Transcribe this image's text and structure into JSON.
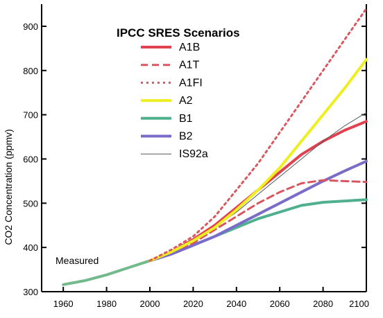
{
  "chart_data": {
    "type": "line",
    "title": "IPCC SRES Scenarios",
    "xlabel": "",
    "ylabel": "CO2 Concentration (ppmv)",
    "xlim": [
      1950,
      2100
    ],
    "ylim": [
      300,
      950
    ],
    "x_ticks": [
      "1960",
      "1980",
      "2000",
      "2020",
      "2040",
      "2060",
      "2080",
      "2100"
    ],
    "y_ticks": [
      "300",
      "400",
      "500",
      "600",
      "700",
      "800",
      "900"
    ],
    "grid": false,
    "legend_position": "top-left",
    "annotation": "Measured",
    "measured": {
      "color": "#72b98c",
      "x": [
        1960,
        1970,
        1980,
        1990,
        2000
      ],
      "y": [
        316,
        325,
        338,
        354,
        370
      ]
    },
    "series": [
      {
        "name": "A1B",
        "color": "#e1424f",
        "style": "solid",
        "width": 4,
        "x": [
          2000,
          2010,
          2020,
          2030,
          2040,
          2050,
          2060,
          2070,
          2080,
          2090,
          2100
        ],
        "y": [
          370,
          390,
          418,
          450,
          490,
          530,
          570,
          610,
          640,
          665,
          685
        ]
      },
      {
        "name": "A1T",
        "color": "#d95560",
        "style": "dashed",
        "width": 3,
        "x": [
          2000,
          2010,
          2020,
          2030,
          2040,
          2050,
          2060,
          2070,
          2080,
          2090,
          2100
        ],
        "y": [
          370,
          390,
          410,
          440,
          470,
          500,
          525,
          545,
          552,
          550,
          548
        ]
      },
      {
        "name": "A1FI",
        "color": "#d9585f",
        "style": "dotted",
        "width": 3,
        "x": [
          2000,
          2010,
          2020,
          2030,
          2040,
          2050,
          2060,
          2070,
          2080,
          2090,
          2100
        ],
        "y": [
          370,
          395,
          425,
          470,
          530,
          590,
          660,
          730,
          800,
          870,
          940
        ]
      },
      {
        "name": "A2",
        "color": "#eeee22",
        "style": "solid",
        "width": 4,
        "x": [
          2000,
          2010,
          2020,
          2030,
          2040,
          2050,
          2060,
          2070,
          2080,
          2090,
          2100
        ],
        "y": [
          370,
          390,
          415,
          445,
          485,
          530,
          580,
          640,
          700,
          760,
          825
        ]
      },
      {
        "name": "B1",
        "color": "#4fb08e",
        "style": "solid",
        "width": 4,
        "x": [
          2000,
          2010,
          2020,
          2030,
          2040,
          2050,
          2060,
          2070,
          2080,
          2090,
          2100
        ],
        "y": [
          370,
          385,
          405,
          425,
          445,
          465,
          480,
          495,
          502,
          505,
          508
        ]
      },
      {
        "name": "B2",
        "color": "#7b6cc8",
        "style": "solid",
        "width": 4,
        "x": [
          2000,
          2010,
          2020,
          2030,
          2040,
          2050,
          2060,
          2070,
          2080,
          2090,
          2100
        ],
        "y": [
          370,
          385,
          405,
          425,
          450,
          475,
          500,
          525,
          550,
          573,
          595
        ]
      },
      {
        "name": "IS92a",
        "color": "#555555",
        "style": "solid",
        "width": 1,
        "x": [
          2000,
          2010,
          2020,
          2030,
          2040,
          2050,
          2060,
          2070,
          2080,
          2090,
          2100
        ],
        "y": [
          370,
          392,
          415,
          445,
          480,
          520,
          560,
          600,
          640,
          675,
          705
        ]
      }
    ]
  }
}
